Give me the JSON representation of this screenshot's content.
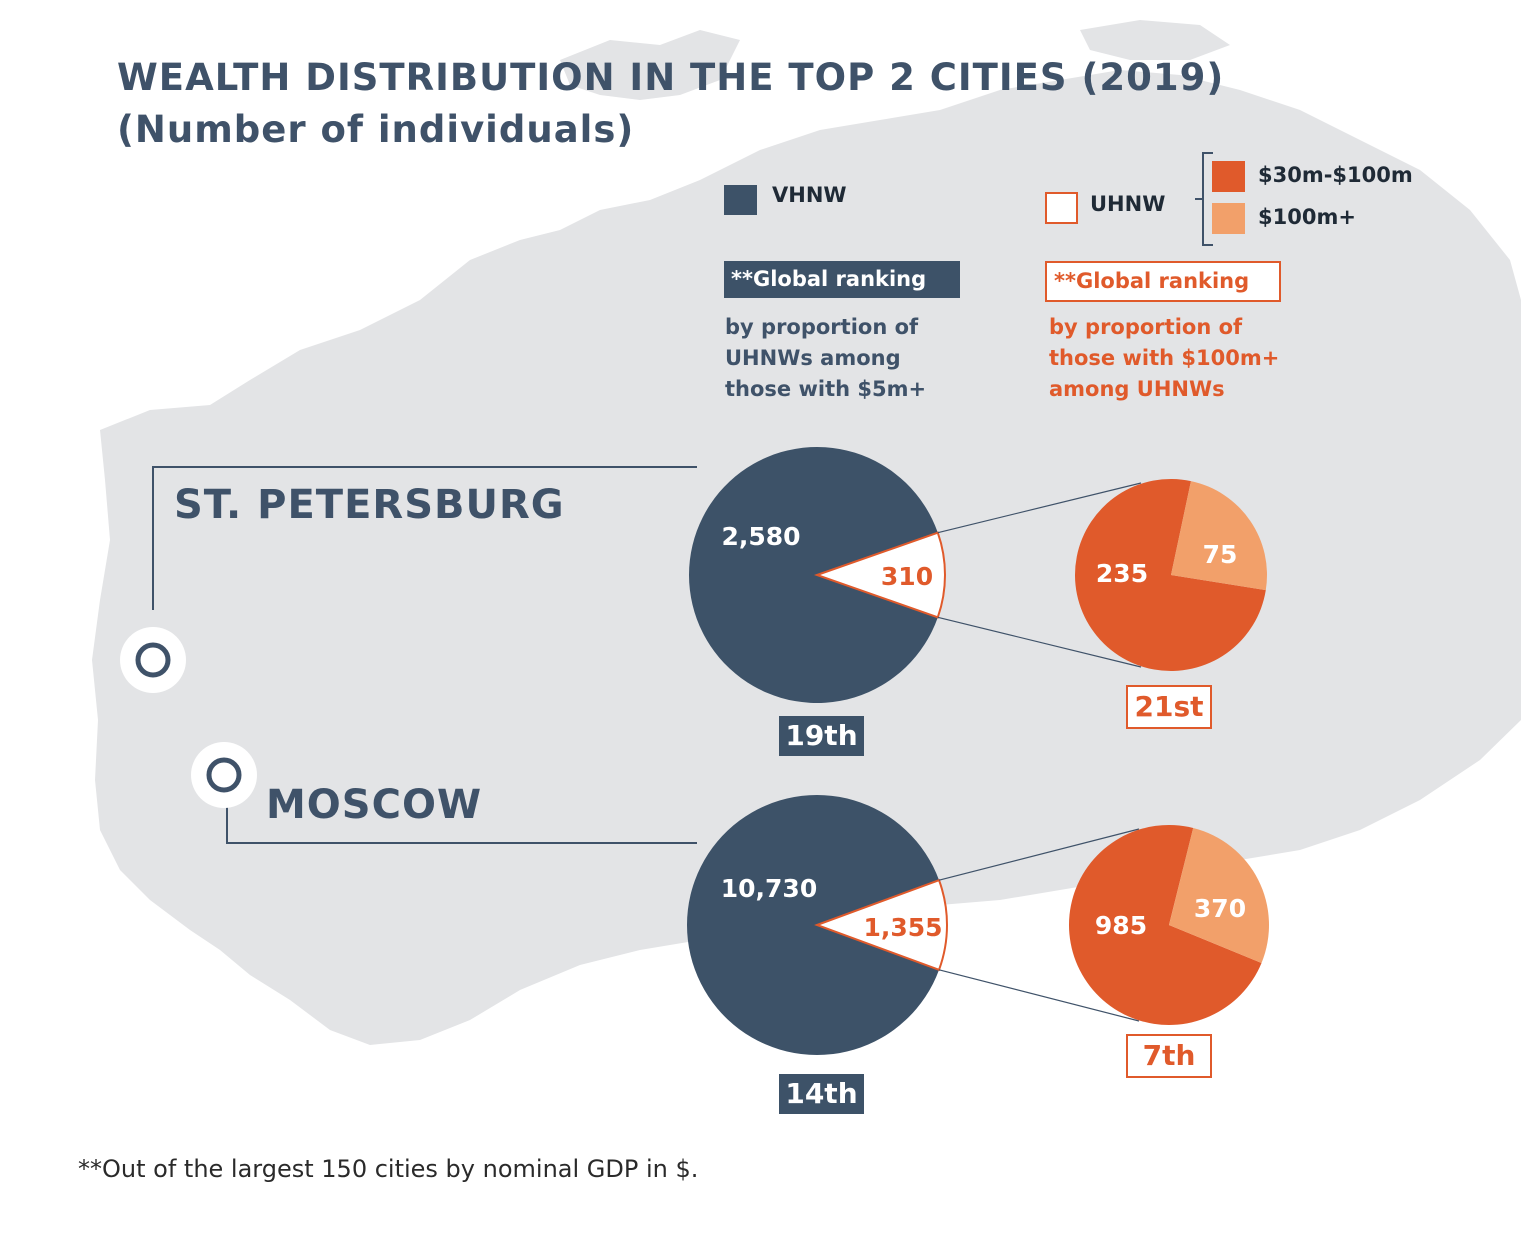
{
  "title": {
    "line1": "WEALTH DISTRIBUTION IN THE TOP 2 CITIES (2019)",
    "line2": "(Number of individuals)"
  },
  "legend": {
    "vhnw": "VHNW",
    "uhnw": "UHNW",
    "band1": "$30m-$100m",
    "band2": "$100m+"
  },
  "ranking": {
    "left_header": "**Global ranking",
    "left_desc": [
      "by proportion of",
      "UHNWs among",
      "those with $5m+"
    ],
    "right_header": "**Global ranking",
    "right_desc": [
      "by proportion of",
      "those with $100m+",
      "among UHNWs"
    ]
  },
  "footnote": "**Out of the largest 150 cities by nominal GDP in $.",
  "colors": {
    "vhnw": "#3d5268",
    "uhnw_outline": "#e05a2b",
    "band1": "#e05a2b",
    "band2": "#f2a06a",
    "map": "#e3e4e6"
  },
  "chart_data": [
    {
      "type": "pie",
      "city": "ST. PETERSBURG",
      "categories": [
        "VHNW",
        "UHNW"
      ],
      "values": [
        2580,
        310
      ],
      "labels": [
        "2,580",
        "310"
      ],
      "rank": "19th"
    },
    {
      "type": "pie",
      "city": "ST. PETERSBURG",
      "categories": [
        "$30m-$100m",
        "$100m+"
      ],
      "values": [
        235,
        75
      ],
      "labels": [
        "235",
        "75"
      ],
      "rank": "21st"
    },
    {
      "type": "pie",
      "city": "MOSCOW",
      "categories": [
        "VHNW",
        "UHNW"
      ],
      "values": [
        10730,
        1355
      ],
      "labels": [
        "10,730",
        "1,355"
      ],
      "rank": "14th"
    },
    {
      "type": "pie",
      "city": "MOSCOW",
      "categories": [
        "$30m-$100m",
        "$100m+"
      ],
      "values": [
        985,
        370
      ],
      "labels": [
        "985",
        "370"
      ],
      "rank": "7th"
    }
  ]
}
